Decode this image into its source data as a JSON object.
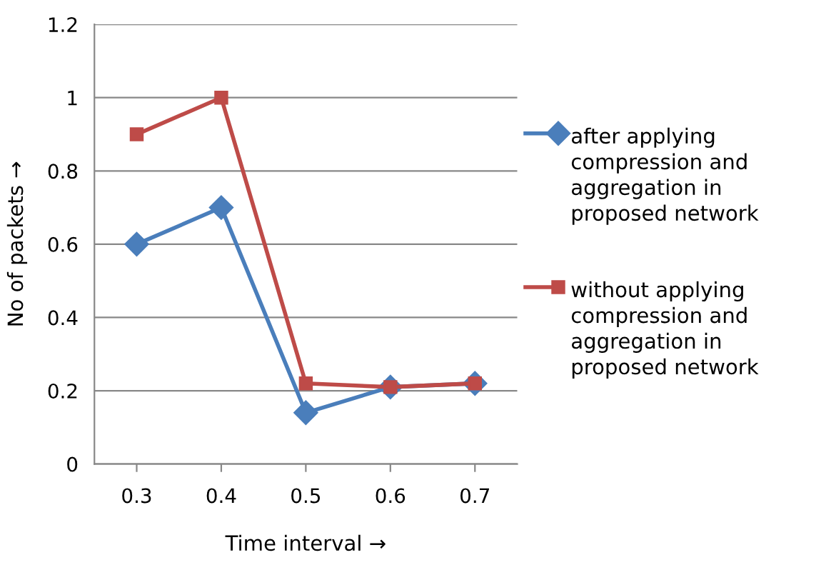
{
  "chart_data": {
    "type": "line",
    "xlabel": "Time interval →",
    "ylabel": "No of packets →",
    "categories": [
      "0.3",
      "0.4",
      "0.5",
      "0.6",
      "0.7"
    ],
    "series": [
      {
        "name": "after applying compression and aggregation in proposed network",
        "color": "#4a7ebb",
        "marker": "diamond",
        "values": [
          0.6,
          0.7,
          0.14,
          0.21,
          0.22
        ]
      },
      {
        "name": "without applying compression and aggregation in proposed network",
        "color": "#be4b48",
        "marker": "square",
        "values": [
          0.9,
          1.0,
          0.22,
          0.21,
          0.22
        ]
      }
    ],
    "ylim": [
      0,
      1.2
    ],
    "yticks": [
      0,
      0.2,
      0.4,
      0.6,
      0.8,
      1,
      1.2
    ],
    "grid": "y",
    "legend": "right"
  }
}
